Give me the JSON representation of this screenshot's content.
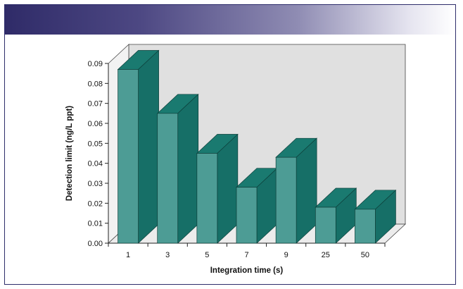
{
  "colors": {
    "header_start": "#2f2b68",
    "frame_border": "#2e2d6b",
    "bar_front": "#4d9c95",
    "bar_side": "#166f67",
    "bar_top": "#1a7a70",
    "back_wall": "#e0e0e0",
    "floor": "#ececec"
  },
  "chart_data": {
    "type": "bar",
    "style": "3d",
    "categories": [
      "1",
      "3",
      "5",
      "7",
      "9",
      "25",
      "50"
    ],
    "values": [
      0.087,
      0.065,
      0.045,
      0.028,
      0.043,
      0.018,
      0.017
    ],
    "xlabel": "Integration time (s)",
    "ylabel": "Detection limit (ng/L ppt)",
    "ylim": [
      0,
      0.09
    ],
    "yticks": [
      "0.00",
      "0.01",
      "0.02",
      "0.03",
      "0.04",
      "0.05",
      "0.06",
      "0.07",
      "0.08",
      "0.09"
    ],
    "grid": false,
    "legend": "none"
  }
}
